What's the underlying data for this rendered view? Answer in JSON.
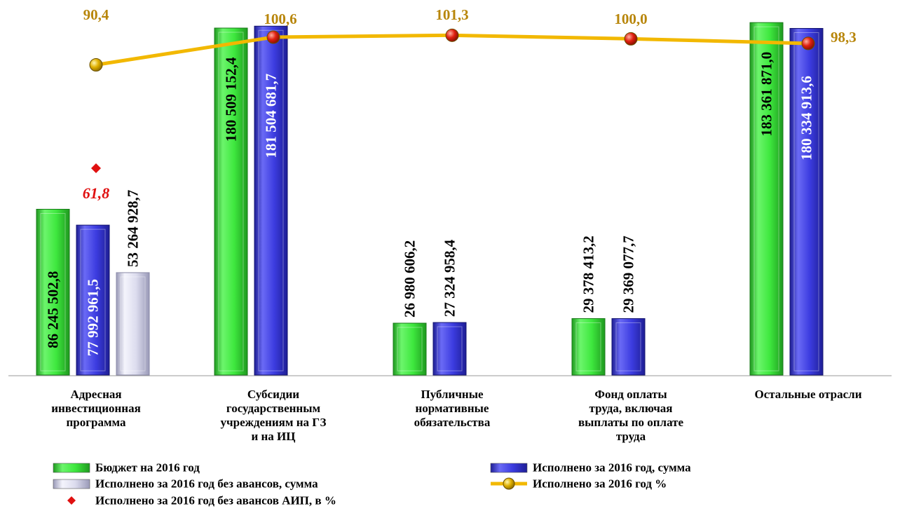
{
  "chart_data": {
    "type": "bar",
    "categories": [
      "Адресная инвестиционная программа",
      "Субсидии государственным учреждениям на ГЗ и на ИЦ",
      "Публичные нормативные обязательства",
      "Фонд оплаты труда, включая выплаты по оплате труда",
      "Остальные отрасли"
    ],
    "category_lines": [
      [
        "Адресная",
        "инвестиционная",
        "программа"
      ],
      [
        "Субсидии",
        "государственным",
        "учреждениям на ГЗ",
        "и на ИЦ"
      ],
      [
        "Публичные",
        "нормативные",
        "обязательства"
      ],
      [
        "Фонд оплаты",
        "труда, включая",
        "выплаты по оплате",
        "труда"
      ],
      [
        "Остальные отрасли"
      ]
    ],
    "series": [
      {
        "name": "Бюджет на 2016 год",
        "kind": "bar",
        "color": "#3ee83e",
        "values": [
          86245502.8,
          180509152.4,
          26980606.2,
          29378413.2,
          183361871.0
        ],
        "labels": [
          "86 245 502,8",
          "180 509 152,4",
          "26 980 606,2",
          "29 378 413,2",
          "183 361 871,0"
        ]
      },
      {
        "name": "Исполнено за 2016 год, сумма",
        "kind": "bar",
        "color": "#3c3ce0",
        "values": [
          77992961.5,
          181504681.7,
          27324958.4,
          29369077.7,
          180334913.6
        ],
        "labels": [
          "77 992 961,5",
          "181 504 681,7",
          "27 324 958,4",
          "29 369 077,7",
          "180 334 913,6"
        ]
      },
      {
        "name": "Исполнено за 2016 год без авансов, сумма",
        "kind": "bar",
        "color": "#d8d8ee",
        "values": [
          53264928.7,
          null,
          null,
          null,
          null
        ],
        "labels": [
          "53 264 928,7",
          "",
          "",
          "",
          ""
        ]
      },
      {
        "name": "Исполнено за 2016 год %",
        "kind": "line",
        "color": "#f2b800",
        "values": [
          90.4,
          100.6,
          101.3,
          100.0,
          98.3
        ],
        "labels": [
          "90,4",
          "100,6",
          "101,3",
          "100,0",
          "98,3"
        ]
      },
      {
        "name": "Исполнено за 2016 год без авансов АИП, в %",
        "kind": "point",
        "color": "#e01010",
        "values": [
          61.8,
          null,
          null,
          null,
          null
        ],
        "labels": [
          "61,8",
          "",
          "",
          "",
          ""
        ]
      }
    ],
    "ylim": [
      0,
      190000000
    ],
    "pct_lim": [
      0,
      105
    ],
    "grid": false,
    "legend_position": "bottom"
  }
}
